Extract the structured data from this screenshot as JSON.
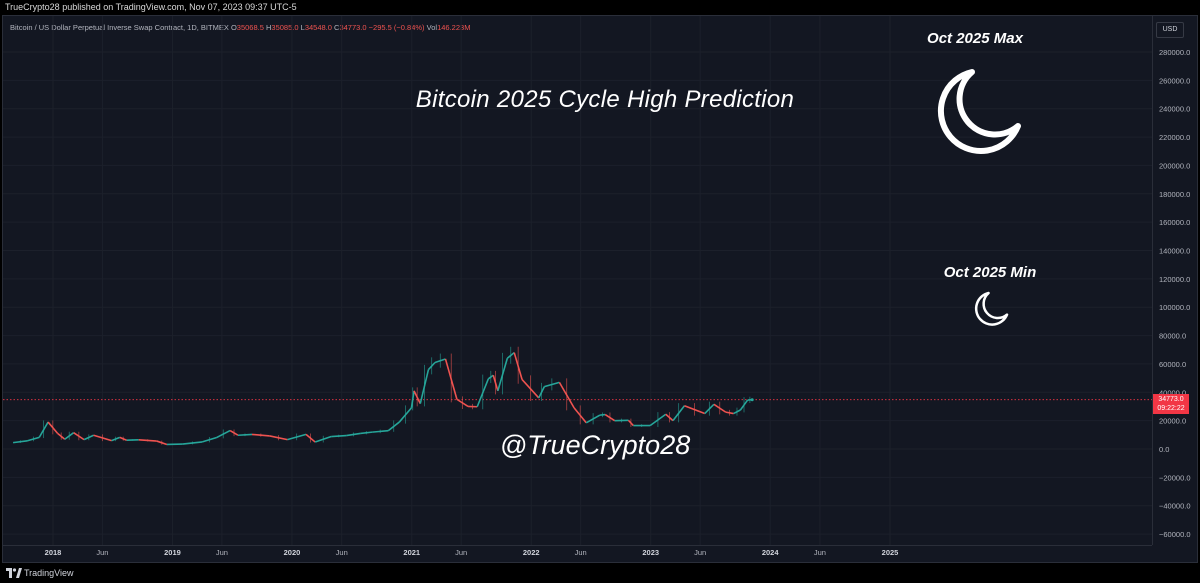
{
  "header": {
    "published_line": "TrueCrypto28 published on TradingView.com, Nov 07, 2023 09:37 UTC-5"
  },
  "legend": {
    "symbol": "Bitcoin / US Dollar Perpetual Inverse Swap Contract, 1D, BITMEX",
    "o_key": "O",
    "o_val": "35068.5",
    "h_key": "H",
    "h_val": "35085.0",
    "l_key": "L",
    "l_val": "34548.0",
    "c_key": "C",
    "c_val": "34773.0",
    "change": "−295.5 (−0.84%)",
    "vol_key": "Vol",
    "vol_val": "146.223M"
  },
  "currency": "USD",
  "annotations": {
    "title": "Bitcoin 2025 Cycle High Prediction",
    "handle": "@TrueCrypto28",
    "max_label": "Oct 2025 Max",
    "min_label": "Oct 2025 Min",
    "moon_icon": "crescent-moon-icon"
  },
  "last_price": {
    "value": "34773.0",
    "countdown": "09:22:22"
  },
  "footer": {
    "brand": "TradingView"
  },
  "colors": {
    "up": "#26a69a",
    "down": "#ef5350",
    "last_price": "#f23645"
  },
  "chart_data": {
    "type": "line",
    "y_ticks": [
      280000,
      260000,
      240000,
      220000,
      200000,
      180000,
      160000,
      140000,
      120000,
      100000,
      80000,
      60000,
      40000,
      20000,
      0,
      -20000,
      -40000,
      -60000
    ],
    "y_tick_labels": [
      "280000.0",
      "260000.0",
      "240000.0",
      "220000.0",
      "200000.0",
      "180000.0",
      "160000.0",
      "140000.0",
      "120000.0",
      "100000.0",
      "80000.0",
      "60000.0",
      "40000.0",
      "20000.0",
      "0.0",
      "−20000.0",
      "−40000.0",
      "−60000.0"
    ],
    "ylim": [
      -60000,
      290000
    ],
    "x_ticks": [
      "2018-01-01",
      "2018-06-01",
      "2019-01-01",
      "2019-06-01",
      "2020-01-01",
      "2020-06-01",
      "2021-01-01",
      "2021-06-01",
      "2022-01-01",
      "2022-06-01",
      "2023-01-01",
      "2023-06-01",
      "2024-01-01",
      "2024-06-01",
      "2025-01-01"
    ],
    "x_tick_labels": [
      "2018",
      "Jun",
      "2019",
      "Jun",
      "2020",
      "Jun",
      "2021",
      "Jun",
      "2022",
      "Jun",
      "2023",
      "Jun",
      "2024",
      "Jun",
      "2025"
    ],
    "xlim": [
      "2017-09-01",
      "2026-01-01"
    ],
    "series": [
      {
        "x": [
          "2017-09-01",
          "2017-10-15",
          "2017-11-20",
          "2017-12-17",
          "2018-01-15",
          "2018-02-06",
          "2018-03-05",
          "2018-04-06",
          "2018-05-05",
          "2018-06-29",
          "2018-07-24",
          "2018-08-14",
          "2018-09-20",
          "2018-11-14",
          "2018-12-15",
          "2019-02-01",
          "2019-04-02",
          "2019-05-15",
          "2019-06-26",
          "2019-07-20",
          "2019-09-01",
          "2019-10-25",
          "2019-12-18",
          "2020-02-13",
          "2020-03-12",
          "2020-04-30",
          "2020-06-15",
          "2020-07-28",
          "2020-09-02",
          "2020-10-21",
          "2020-11-24",
          "2020-12-31",
          "2021-01-08",
          "2021-01-27",
          "2021-02-21",
          "2021-03-13",
          "2021-04-14",
          "2021-05-19",
          "2021-06-22",
          "2021-07-20",
          "2021-08-23",
          "2021-09-07",
          "2021-09-21",
          "2021-10-20",
          "2021-11-10",
          "2021-12-04",
          "2022-01-24",
          "2022-02-10",
          "2022-03-28",
          "2022-05-12",
          "2022-06-18",
          "2022-07-30",
          "2022-08-15",
          "2022-09-13",
          "2022-10-25",
          "2022-11-09",
          "2022-12-30",
          "2023-02-16",
          "2023-03-10",
          "2023-04-14",
          "2023-06-15",
          "2023-07-13",
          "2023-08-18",
          "2023-09-11",
          "2023-10-02",
          "2023-10-24",
          "2023-11-07"
        ],
        "y": [
          4500,
          5800,
          8200,
          19000,
          11000,
          6900,
          11500,
          6600,
          9700,
          5900,
          8200,
          6200,
          6500,
          5600,
          3200,
          3500,
          5000,
          8000,
          13000,
          9700,
          10300,
          9200,
          6600,
          10300,
          4900,
          8800,
          9500,
          11000,
          11900,
          12900,
          19000,
          29000,
          41000,
          32000,
          56000,
          61000,
          63500,
          35000,
          30000,
          29800,
          49500,
          52000,
          41000,
          64000,
          68000,
          49000,
          36000,
          44000,
          47000,
          29000,
          18500,
          23900,
          24300,
          20000,
          20200,
          16500,
          16500,
          24500,
          20000,
          30500,
          25000,
          31500,
          26000,
          25000,
          27500,
          34500,
          34773
        ]
      }
    ],
    "last_price_line": 34773
  }
}
